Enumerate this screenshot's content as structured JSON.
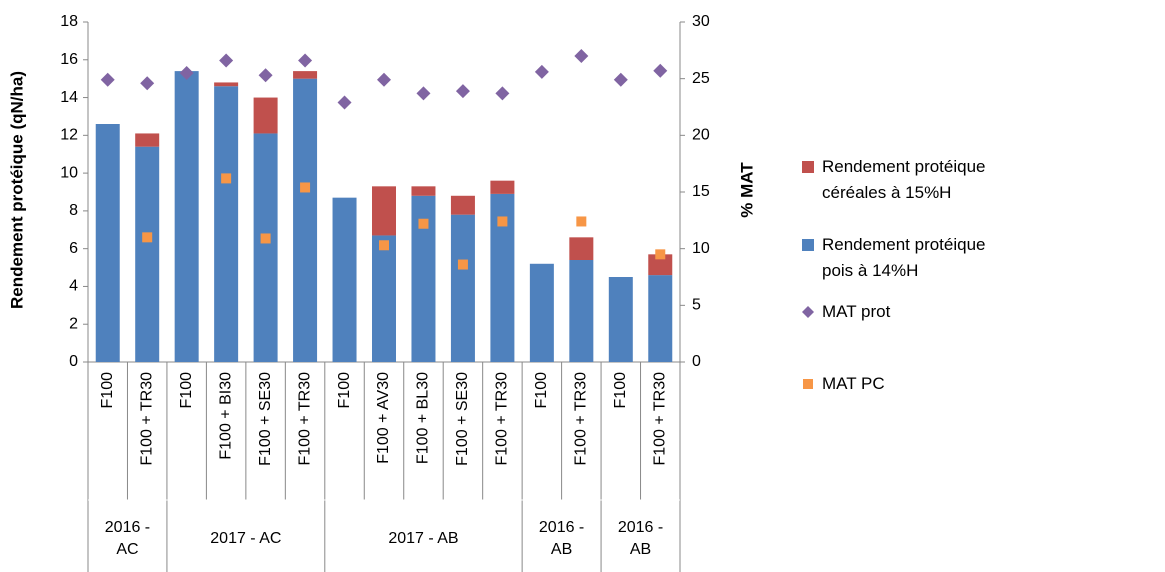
{
  "chart_data": {
    "type": "bar",
    "y_label": "Rendement protéique (qN/ha)",
    "y2_label": "% MAT",
    "groups": [
      {
        "label": "2016 - AC",
        "categories": [
          "F100",
          "F100 + TR30"
        ]
      },
      {
        "label": "2017 - AC",
        "categories": [
          "F100",
          "F100 + BI30",
          "F100 + SE30",
          "F100 + TR30"
        ]
      },
      {
        "label": "2017 - AB",
        "categories": [
          "F100",
          "F100 + AV30",
          "F100 + BL30",
          "F100 + SE30",
          "F100 + TR30"
        ]
      },
      {
        "label": "2016 - AB",
        "categories": [
          "F100",
          "F100 + TR30"
        ]
      },
      {
        "label": "2016 - AB",
        "categories": [
          "F100",
          "F100 + TR30"
        ]
      }
    ],
    "series": [
      {
        "name": "Rendement protéique pois à 14%H",
        "color": "#4f81bd",
        "type": "bar",
        "values": [
          12.6,
          11.4,
          15.4,
          14.6,
          12.1,
          15.0,
          8.7,
          6.7,
          8.8,
          7.8,
          8.9,
          5.2,
          5.4,
          4.5,
          4.6
        ]
      },
      {
        "name": "Rendement protéique céréales à 15%H",
        "color": "#c0504d",
        "type": "bar",
        "values": [
          null,
          0.7,
          null,
          0.2,
          1.9,
          0.4,
          null,
          2.6,
          0.5,
          1.0,
          0.7,
          null,
          1.2,
          null,
          1.1
        ]
      },
      {
        "name": "MAT prot",
        "color": "#8064a2",
        "type": "scatter",
        "marker": "diamond",
        "axis": "y2",
        "values": [
          24.9,
          24.6,
          25.5,
          26.6,
          25.3,
          26.6,
          22.9,
          24.9,
          23.7,
          23.9,
          23.7,
          25.6,
          27.0,
          24.9,
          25.7
        ]
      },
      {
        "name": "MAT PC",
        "color": "#f79646",
        "type": "scatter",
        "marker": "square",
        "axis": "y2",
        "values": [
          null,
          11.0,
          null,
          16.2,
          10.9,
          15.4,
          null,
          10.3,
          12.2,
          8.6,
          12.4,
          null,
          12.4,
          null,
          9.5
        ]
      }
    ],
    "legend_order": [
      1,
      0,
      2,
      3
    ],
    "ylim": [
      0,
      18
    ],
    "yticks": [
      0,
      2,
      4,
      6,
      8,
      10,
      12,
      14,
      16,
      18
    ],
    "y2lim": [
      0,
      30
    ],
    "y2ticks": [
      0,
      5,
      10,
      15,
      20,
      25,
      30
    ]
  }
}
